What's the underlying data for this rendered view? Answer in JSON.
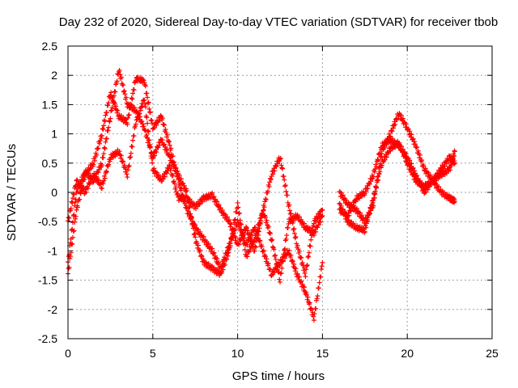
{
  "chart_data": {
    "type": "scatter",
    "title": "Day 232 of 2020, Sidereal Day-to-day VTEC variation (SDTVAR) for receiver tbob",
    "xlabel": "GPS time / hours",
    "ylabel": "SDTVAR / TECUs",
    "xlim": [
      0,
      25
    ],
    "ylim": [
      -2.5,
      2.5
    ],
    "xticks": [
      "0",
      "5",
      "10",
      "15",
      "20",
      "25"
    ],
    "yticks": [
      "-2.5",
      "-2",
      "-1.5",
      "-1",
      "-0.5",
      "0",
      "0.5",
      "1",
      "1.5",
      "2",
      "2.5"
    ],
    "grid": true,
    "marker": "+",
    "color": "#ff0000",
    "series": [
      {
        "name": "track-1",
        "x": [
          0.0,
          0.5,
          1.0,
          1.5,
          2.0,
          2.5,
          3.0,
          3.5,
          4.0,
          4.5,
          5.0,
          5.5,
          6.0,
          6.5,
          7.0,
          7.5,
          8.0,
          8.5,
          9.0,
          9.5,
          10.0,
          10.5,
          11.0,
          11.5,
          12.0,
          12.5,
          13.0,
          13.5,
          14.0,
          14.5,
          15.0
        ],
        "y": [
          -1.4,
          -0.3,
          0.3,
          0.5,
          1.0,
          1.7,
          1.3,
          1.2,
          1.95,
          1.9,
          1.1,
          1.3,
          0.8,
          0.2,
          -0.3,
          -0.6,
          -0.8,
          -1.0,
          -1.3,
          -0.9,
          -0.5,
          -0.9,
          -0.6,
          -1.0,
          -1.4,
          -1.2,
          -1.0,
          -1.4,
          -1.7,
          -2.15,
          -1.2
        ]
      },
      {
        "name": "track-2",
        "x": [
          0.0,
          0.5,
          1.0,
          1.5,
          2.0,
          2.5,
          3.0,
          3.5,
          4.0,
          4.5,
          5.0,
          5.5,
          6.0,
          6.5,
          7.0,
          7.5,
          8.0,
          8.5,
          9.0,
          9.5,
          10.0,
          10.5,
          11.0,
          11.5,
          12.0,
          12.5,
          13.0,
          13.5,
          14.0,
          14.5,
          15.0
        ],
        "y": [
          -1.2,
          0.0,
          0.35,
          0.2,
          0.5,
          1.3,
          2.1,
          1.5,
          1.4,
          1.1,
          0.6,
          0.9,
          0.6,
          0.3,
          0.0,
          -0.8,
          -1.2,
          -1.3,
          -1.4,
          -1.0,
          -0.2,
          -1.1,
          -0.8,
          -0.3,
          0.3,
          0.6,
          -0.2,
          -0.9,
          -1.4,
          -0.5,
          -0.3
        ]
      },
      {
        "name": "track-3",
        "x": [
          0.0,
          0.5,
          1.0,
          1.5,
          2.0,
          2.5,
          3.0,
          3.5,
          4.0,
          4.5,
          5.0,
          5.5,
          6.0,
          6.5,
          7.0,
          7.5,
          8.0,
          8.5,
          9.0,
          9.5,
          10.0,
          10.5,
          11.0,
          11.5,
          12.0,
          12.5,
          13.0,
          13.5,
          14.0,
          14.5,
          15.0
        ],
        "y": [
          -0.5,
          0.2,
          0.0,
          0.3,
          0.1,
          0.6,
          0.7,
          0.3,
          1.2,
          1.6,
          0.4,
          0.2,
          0.45,
          -0.1,
          -0.1,
          -0.25,
          -0.1,
          -0.05,
          -0.3,
          -0.5,
          -0.9,
          -0.6,
          -1.0,
          -0.3,
          -0.8,
          -1.5,
          -0.5,
          -0.4,
          -0.6,
          -0.7,
          -0.4
        ]
      },
      {
        "name": "track-4",
        "x": [
          16.0,
          16.5,
          17.0,
          17.5,
          18.0,
          18.5,
          19.0,
          19.5,
          20.0,
          20.5,
          21.0,
          21.5,
          22.0,
          22.5,
          22.8
        ],
        "y": [
          0.0,
          -0.2,
          -0.3,
          -0.5,
          -0.2,
          0.7,
          1.0,
          1.35,
          1.1,
          0.8,
          0.4,
          0.2,
          0.3,
          0.4,
          0.7
        ]
      },
      {
        "name": "track-5",
        "x": [
          16.0,
          16.5,
          17.0,
          17.5,
          18.0,
          18.5,
          19.0,
          19.5,
          20.0,
          20.5,
          21.0,
          21.5,
          22.0,
          22.5,
          22.8
        ],
        "y": [
          -0.3,
          -0.4,
          -0.1,
          0.0,
          0.3,
          0.8,
          0.9,
          0.8,
          0.6,
          0.3,
          0.0,
          0.2,
          0.4,
          0.6,
          0.5
        ]
      },
      {
        "name": "track-6",
        "x": [
          16.0,
          16.5,
          17.0,
          17.5,
          18.0,
          18.5,
          19.0,
          19.5,
          20.0,
          20.5,
          21.0,
          21.5,
          22.0,
          22.5,
          22.8
        ],
        "y": [
          -0.2,
          -0.5,
          -0.6,
          -0.65,
          -0.1,
          0.5,
          0.75,
          0.85,
          0.5,
          0.2,
          0.1,
          0.2,
          0.0,
          -0.1,
          -0.15
        ]
      }
    ]
  }
}
